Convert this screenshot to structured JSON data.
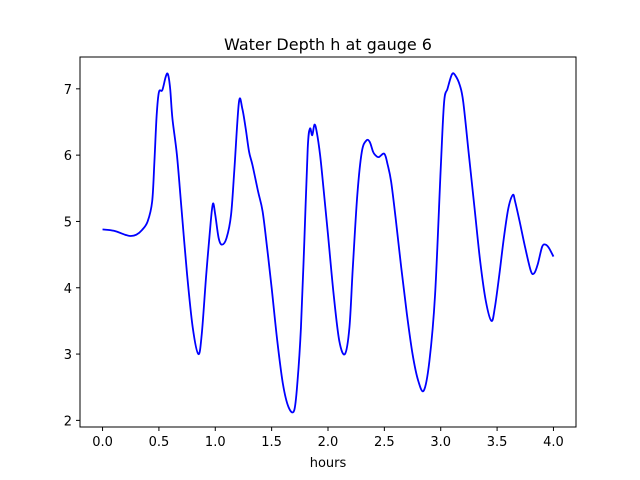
{
  "chart_data": {
    "type": "line",
    "title": "Water Depth h at gauge 6",
    "xlabel": "hours",
    "ylabel": "",
    "xlim": [
      -0.2,
      4.2
    ],
    "ylim": [
      1.9,
      7.48
    ],
    "xticks": [
      0.0,
      0.5,
      1.0,
      1.5,
      2.0,
      2.5,
      3.0,
      3.5,
      4.0
    ],
    "xtick_labels": [
      "0.0",
      "0.5",
      "1.0",
      "1.5",
      "2.0",
      "2.5",
      "3.0",
      "3.5",
      "4.0"
    ],
    "yticks": [
      2,
      3,
      4,
      5,
      6,
      7
    ],
    "ytick_labels": [
      "2",
      "3",
      "4",
      "5",
      "6",
      "7"
    ],
    "grid": false,
    "series": [
      {
        "name": "",
        "color": "#0000ff",
        "x": [
          0.0,
          0.1,
          0.2,
          0.25,
          0.3,
          0.35,
          0.4,
          0.44,
          0.46,
          0.48,
          0.5,
          0.53,
          0.56,
          0.58,
          0.6,
          0.62,
          0.66,
          0.7,
          0.75,
          0.8,
          0.85,
          0.88,
          0.92,
          0.96,
          0.98,
          1.0,
          1.03,
          1.06,
          1.1,
          1.14,
          1.17,
          1.21,
          1.24,
          1.27,
          1.3,
          1.33,
          1.38,
          1.42,
          1.46,
          1.5,
          1.55,
          1.6,
          1.65,
          1.7,
          1.73,
          1.76,
          1.79,
          1.82,
          1.84,
          1.86,
          1.88,
          1.9,
          1.93,
          1.96,
          2.0,
          2.05,
          2.1,
          2.15,
          2.19,
          2.22,
          2.26,
          2.3,
          2.34,
          2.37,
          2.4,
          2.42,
          2.45,
          2.5,
          2.53,
          2.56,
          2.6,
          2.65,
          2.7,
          2.75,
          2.8,
          2.85,
          2.9,
          2.95,
          3.0,
          3.03,
          3.06,
          3.1,
          3.13,
          3.17,
          3.2,
          3.25,
          3.3,
          3.35,
          3.4,
          3.45,
          3.48,
          3.52,
          3.56,
          3.6,
          3.64,
          3.66,
          3.7,
          3.75,
          3.8,
          3.83,
          3.86,
          3.9,
          3.93,
          3.96,
          4.0
        ],
        "y": [
          4.88,
          4.86,
          4.8,
          4.78,
          4.8,
          4.87,
          5.0,
          5.3,
          5.9,
          6.6,
          6.95,
          6.98,
          7.18,
          7.22,
          7.0,
          6.55,
          6.0,
          5.2,
          4.2,
          3.4,
          3.0,
          3.3,
          4.2,
          5.0,
          5.27,
          5.1,
          4.75,
          4.65,
          4.75,
          5.1,
          5.8,
          6.8,
          6.7,
          6.4,
          6.05,
          5.85,
          5.45,
          5.15,
          4.6,
          4.0,
          3.2,
          2.55,
          2.2,
          2.15,
          2.6,
          3.4,
          4.7,
          6.1,
          6.4,
          6.3,
          6.46,
          6.35,
          6.0,
          5.5,
          4.8,
          3.9,
          3.2,
          3.0,
          3.4,
          4.3,
          5.4,
          6.05,
          6.22,
          6.2,
          6.05,
          6.0,
          5.97,
          6.02,
          5.85,
          5.6,
          5.05,
          4.3,
          3.6,
          3.0,
          2.6,
          2.45,
          2.9,
          3.9,
          5.8,
          6.8,
          7.0,
          7.22,
          7.2,
          7.05,
          6.8,
          6.0,
          5.2,
          4.4,
          3.8,
          3.5,
          3.7,
          4.2,
          4.75,
          5.2,
          5.4,
          5.3,
          5.0,
          4.6,
          4.25,
          4.22,
          4.35,
          4.62,
          4.65,
          4.6,
          4.47
        ]
      }
    ]
  }
}
